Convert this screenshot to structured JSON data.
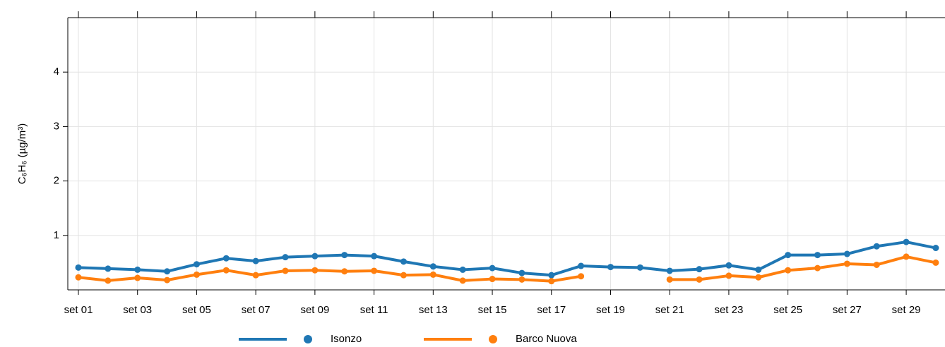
{
  "chart_data": {
    "type": "line",
    "y_label": "C₆H₆ (µg/m³)",
    "categories": [
      "set 01",
      null,
      "set 03",
      null,
      "set 05",
      null,
      "set 07",
      null,
      "set 09",
      null,
      "set 11",
      null,
      "set 13",
      null,
      "set 15",
      null,
      "set 17",
      null,
      "set 19",
      null,
      "set 21",
      null,
      "set 23",
      null,
      "set 25",
      null,
      "set 27",
      null,
      "set 29",
      null
    ],
    "series": [
      {
        "name": "Isonzo",
        "color": "#1f77b4",
        "values": [
          0.41,
          0.39,
          0.37,
          0.34,
          0.47,
          0.58,
          0.53,
          0.6,
          0.62,
          0.64,
          0.62,
          0.52,
          0.43,
          0.37,
          0.4,
          0.31,
          0.27,
          0.44,
          0.42,
          0.41,
          0.35,
          0.38,
          0.45,
          0.37,
          0.64,
          0.64,
          0.66,
          0.8,
          0.88,
          0.77
        ]
      },
      {
        "name": "Barco Nuova",
        "color": "#ff7f0e",
        "values": [
          0.23,
          0.17,
          0.22,
          0.18,
          0.28,
          0.36,
          0.27,
          0.35,
          0.36,
          0.34,
          0.35,
          0.27,
          0.28,
          0.17,
          0.2,
          0.19,
          0.16,
          0.25,
          null,
          null,
          0.19,
          0.19,
          0.26,
          0.23,
          0.36,
          0.4,
          0.48,
          0.46,
          0.61,
          0.5
        ]
      }
    ],
    "ylim": [
      0,
      5
    ],
    "yticks": [
      1,
      2,
      3,
      4
    ],
    "grid": true
  }
}
